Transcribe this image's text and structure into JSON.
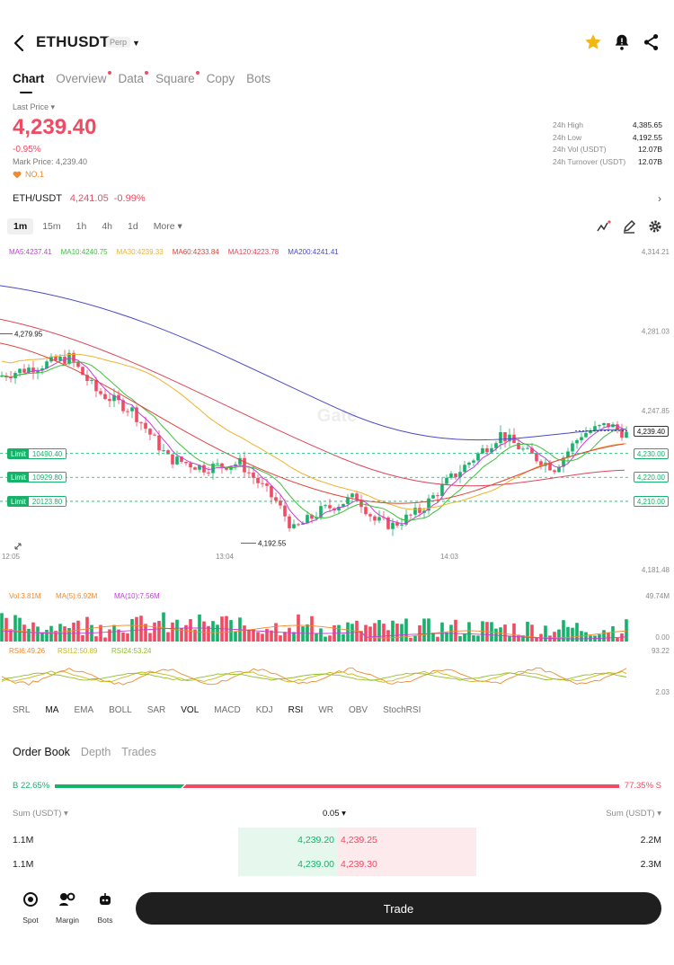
{
  "header": {
    "pair": "ETHUSDT",
    "badge": "Perp",
    "icons": [
      "back-arrow-icon",
      "star-icon",
      "bell-icon",
      "share-icon"
    ]
  },
  "tabs": [
    {
      "label": "Chart",
      "active": true,
      "dot": false
    },
    {
      "label": "Overview",
      "active": false,
      "dot": true
    },
    {
      "label": "Data",
      "active": false,
      "dot": true
    },
    {
      "label": "Square",
      "active": false,
      "dot": true
    },
    {
      "label": "Copy",
      "active": false,
      "dot": false
    },
    {
      "label": "Bots",
      "active": false,
      "dot": false
    }
  ],
  "price": {
    "label": "Last Price",
    "value": "4,239.40",
    "change": "-0.95%",
    "mark": "Mark Price: 4,239.40",
    "rank": "NO.1"
  },
  "stats": [
    {
      "k": "24h High",
      "v": "4,385.65"
    },
    {
      "k": "24h Low",
      "v": "4,192.55"
    },
    {
      "k": "24h Vol (USDT)",
      "v": "12.07B"
    },
    {
      "k": "24h Turnover (USDT)",
      "v": "12.07B"
    }
  ],
  "spot": {
    "pair": "ETH/USDT",
    "price": "4,241.05",
    "change": "-0.99%"
  },
  "timeframes": [
    {
      "label": "1m",
      "active": true
    },
    {
      "label": "15m",
      "active": false
    },
    {
      "label": "1h",
      "active": false
    },
    {
      "label": "4h",
      "active": false
    },
    {
      "label": "1d",
      "active": false
    },
    {
      "label": "More",
      "active": false
    }
  ],
  "ma_legend": [
    {
      "label": "MA5:4237.41",
      "color": "#c13fd6"
    },
    {
      "label": "MA10:4240.75",
      "color": "#3fbf3f"
    },
    {
      "label": "MA30:4239.33",
      "color": "#f2b12a"
    },
    {
      "label": "MA60:4233.84",
      "color": "#e0443c"
    },
    {
      "label": "MA120:4223.78",
      "color": "#e0445a"
    },
    {
      "label": "MA200:4241.41",
      "color": "#4a4ac8"
    }
  ],
  "chart": {
    "y_labels": [
      "4,314.21",
      "4,281.03",
      "4,247.85",
      "4,214.67",
      "4,181.48"
    ],
    "x_labels": [
      "12:05",
      "13:04",
      "14:03"
    ],
    "high_marker": "4,279.95",
    "low_marker": "4,192.55",
    "limits": [
      {
        "label": "Limit",
        "value": "10490.40",
        "price": "4,230.00"
      },
      {
        "label": "Limit",
        "value": "10929.80",
        "price": "4,220.00"
      },
      {
        "label": "Limit",
        "value": "20123.80",
        "price": "4,210.00"
      }
    ],
    "current_price": "4,239.40",
    "watermark": "Gate",
    "vol_legend": [
      {
        "label": "Vol:3.81M",
        "color": "#f08a2e"
      },
      {
        "label": "MA(5):6.92M",
        "color": "#f08a2e"
      },
      {
        "label": "MA(10):7.56M",
        "color": "#c13fd6"
      }
    ],
    "vol_labels": [
      "49.74M",
      "0.00"
    ],
    "rsi_legend": [
      {
        "label": "RSI6:49.26",
        "color": "#f08a2e"
      },
      {
        "label": "RSI12:50.89",
        "color": "#c9b81a"
      },
      {
        "label": "RSI24:53.24",
        "color": "#8fbf2a"
      }
    ],
    "rsi_labels": [
      "93.22",
      "2.03"
    ]
  },
  "indicators": [
    {
      "label": "SRL",
      "on": false
    },
    {
      "label": "MA",
      "on": true
    },
    {
      "label": "EMA",
      "on": false
    },
    {
      "label": "BOLL",
      "on": false
    },
    {
      "label": "SAR",
      "on": false
    },
    {
      "label": "VOL",
      "on": true
    },
    {
      "label": "MACD",
      "on": false
    },
    {
      "label": "KDJ",
      "on": false
    },
    {
      "label": "RSI",
      "on": true
    },
    {
      "label": "WR",
      "on": false
    },
    {
      "label": "OBV",
      "on": false
    },
    {
      "label": "StochRSI",
      "on": false
    }
  ],
  "orderbook": {
    "tabs": [
      {
        "label": "Order Book",
        "active": true
      },
      {
        "label": "Depth",
        "active": false
      },
      {
        "label": "Trades",
        "active": false
      }
    ],
    "buy_ratio": "B 22.65%",
    "sell_ratio": "77.35% S",
    "buy_fraction": 0.2265,
    "sum_left": "Sum (USDT)",
    "precision": "0.05",
    "sum_right": "Sum (USDT)",
    "rows": [
      {
        "bid_sum": "1.1M",
        "bid": "4,239.20",
        "ask": "4,239.25",
        "ask_sum": "2.2M"
      },
      {
        "bid_sum": "1.1M",
        "bid": "4,239.00",
        "ask": "4,239.30",
        "ask_sum": "2.3M"
      }
    ]
  },
  "bottom": {
    "items": [
      {
        "label": "Spot",
        "icon": "spot-icon"
      },
      {
        "label": "Margin",
        "icon": "margin-icon"
      },
      {
        "label": "Bots",
        "icon": "bots-icon"
      }
    ],
    "trade": "Trade"
  },
  "colors": {
    "up": "#17b26a",
    "down": "#ef4b63",
    "accent": "#f5b70f"
  }
}
